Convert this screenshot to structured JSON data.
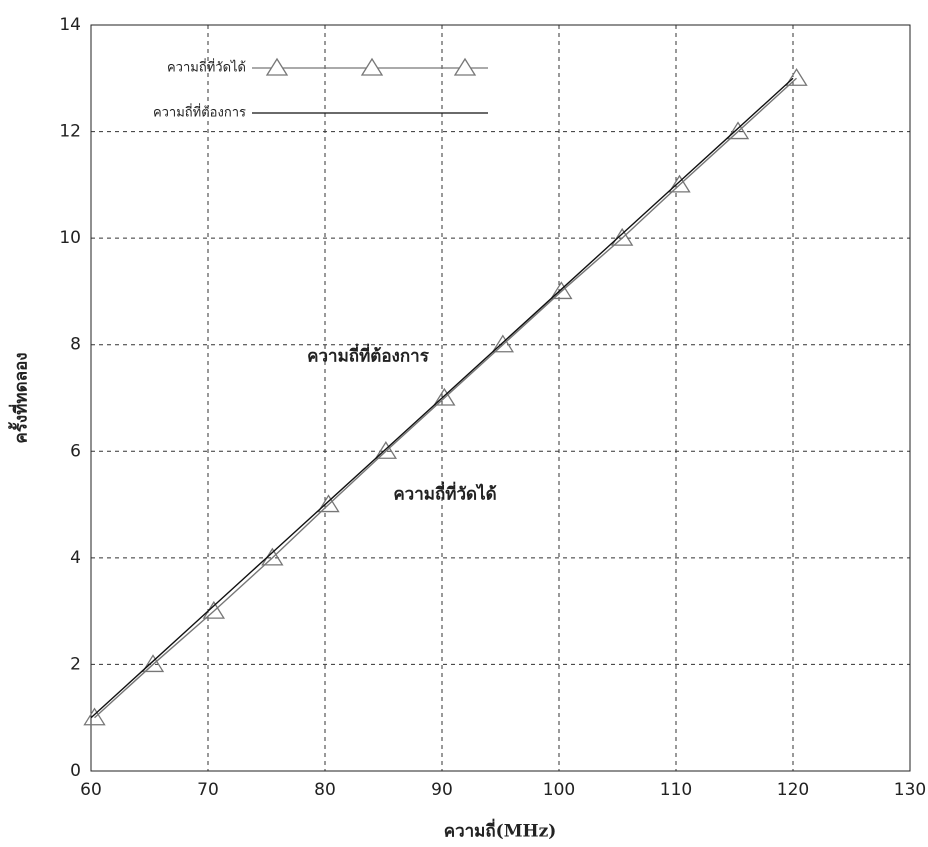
{
  "chart_data": {
    "type": "line",
    "xlabel": "ความถี่(MHz)",
    "ylabel": "ครั้งที่ทดลอง",
    "xlim": [
      60,
      130
    ],
    "xticks": [
      60,
      70,
      80,
      90,
      100,
      110,
      120,
      130
    ],
    "ylim": [
      0,
      14
    ],
    "yticks": [
      0,
      2,
      4,
      6,
      8,
      10,
      12,
      14
    ],
    "grid": true,
    "legend": "upper left",
    "annotations": [
      "ความถี่ที่ต้องการ",
      "ความถี่ที่วัดได้"
    ],
    "series": [
      {
        "name": "ความถี่ที่วัดได้",
        "color": "#777777",
        "marker": "triangle",
        "x": [
          60.3,
          65.3,
          70.5,
          75.5,
          80.3,
          85.2,
          90.2,
          95.2,
          100.2,
          105.4,
          110.3,
          115.3,
          120.3
        ],
        "values": [
          1,
          2,
          3,
          4,
          5,
          6,
          7,
          8,
          9,
          10,
          11,
          12,
          13
        ]
      },
      {
        "name": "ความถี่ที่ต้องการ",
        "color": "#111111",
        "x": [
          60,
          65,
          70,
          75,
          80,
          85,
          90,
          95,
          100,
          105,
          110,
          115,
          120
        ],
        "values": [
          1,
          2,
          3,
          4,
          5,
          6,
          7,
          8,
          9,
          10,
          11,
          12,
          13
        ]
      }
    ]
  }
}
